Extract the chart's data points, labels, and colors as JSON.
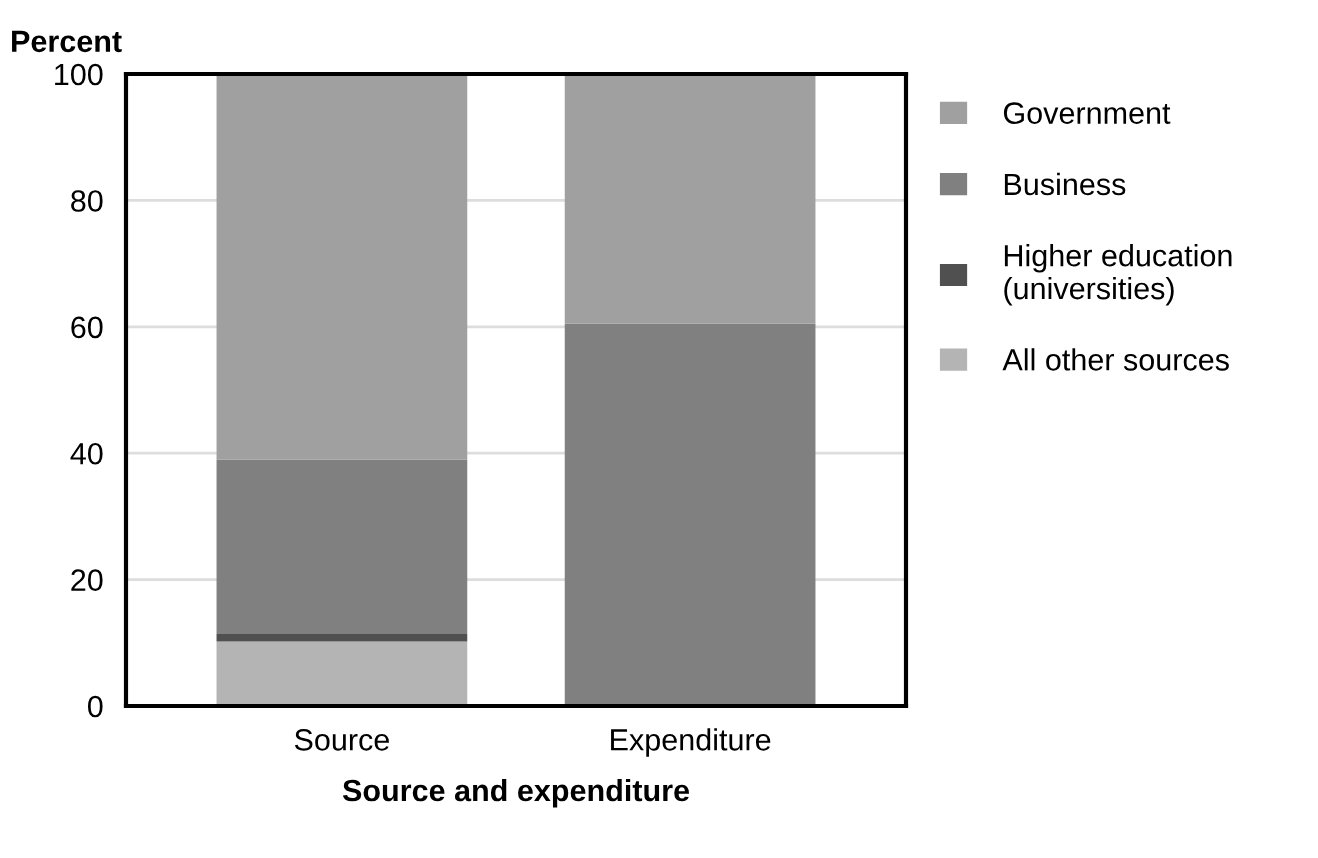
{
  "chart_data": {
    "type": "bar",
    "stacked": true,
    "ylabel": "Percent",
    "xlabel": "Source and expenditure",
    "categories": [
      "Source",
      "Expenditure"
    ],
    "series": [
      {
        "name": "All other sources",
        "color": "#b4b4b4",
        "values": [
          10.2,
          0
        ]
      },
      {
        "name": "Higher education (universities)",
        "color": "#505050",
        "values": [
          1.2,
          0
        ]
      },
      {
        "name": "Business",
        "color": "#808080",
        "values": [
          27.6,
          60.5
        ]
      },
      {
        "name": "Government",
        "color": "#a0a0a0",
        "values": [
          61,
          39.5
        ]
      }
    ],
    "ylim": [
      0,
      100
    ],
    "yticks": [
      0,
      20,
      40,
      60,
      80,
      100
    ],
    "grid": "y",
    "legend": "right"
  }
}
